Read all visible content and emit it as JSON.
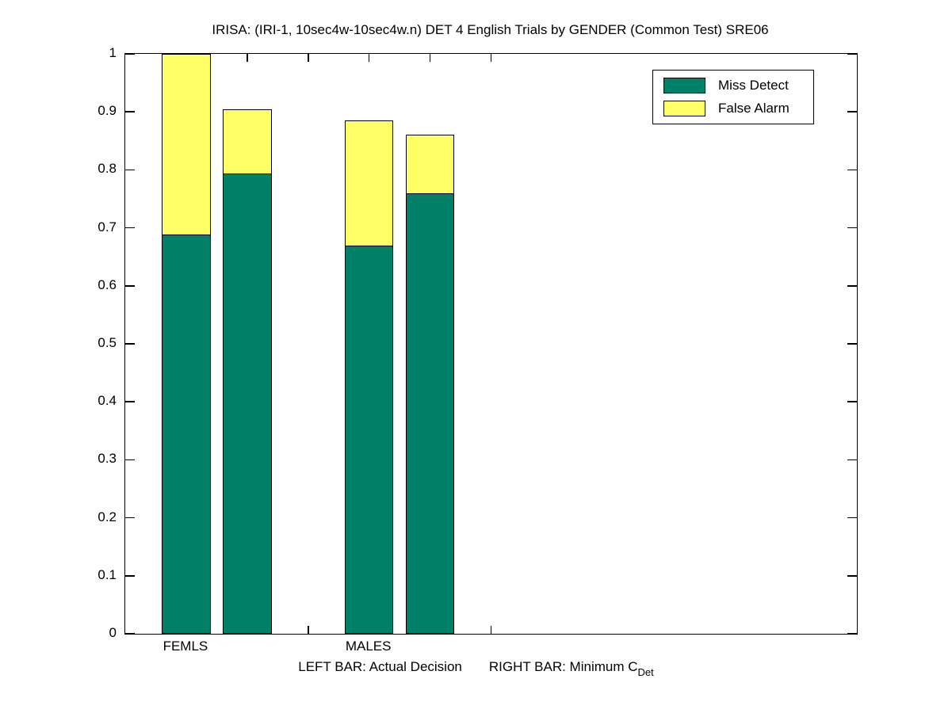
{
  "chart_data": {
    "type": "bar",
    "stacked": true,
    "title": "IRISA: (IRI-1, 10sec4w-10sec4w.n) DET 4 English Trials by GENDER (Common Test) SRE06",
    "xlabel": "LEFT BAR: Actual Decision    RIGHT BAR: Minimum C_Det",
    "xlabel_parts": {
      "left": "LEFT BAR: Actual Decision",
      "right_main": "RIGHT BAR: Minimum C",
      "right_sub": "Det"
    },
    "ylabel": "",
    "ylim": [
      0,
      1
    ],
    "xlim": [
      0.5,
      4.5
    ],
    "yticks": [
      0,
      0.1,
      0.2,
      0.3,
      0.4,
      0.5,
      0.6,
      0.7,
      0.8,
      0.9,
      1
    ],
    "ytick_labels": [
      "0",
      "0.1",
      "0.2",
      "0.3",
      "0.4",
      "0.5",
      "0.6",
      "0.7",
      "0.8",
      "0.9",
      "1"
    ],
    "xticks": [
      0.8333,
      1.1667,
      1.5,
      1.8333,
      2.1667,
      2.5
    ],
    "grid": false,
    "box": true,
    "legend": {
      "position": "top-right",
      "entries": [
        {
          "label": "Miss Detect",
          "color": "#008066"
        },
        {
          "label": "False Alarm",
          "color": "#FFFF66"
        }
      ]
    },
    "categories": [
      "FEMLS",
      "MALES"
    ],
    "category_label_x": [
      0.8333,
      1.8333
    ],
    "bar_width": 0.2667,
    "bars": [
      {
        "group": "FEMLS",
        "kind": "Actual Decision",
        "x_center": 0.8333,
        "miss_detect": 0.69,
        "false_alarm": 0.31,
        "total": 1.0
      },
      {
        "group": "FEMLS",
        "kind": "Minimum C_Det",
        "x_center": 1.1667,
        "miss_detect": 0.795,
        "false_alarm": 0.11,
        "total": 0.905
      },
      {
        "group": "MALES",
        "kind": "Actual Decision",
        "x_center": 1.8333,
        "miss_detect": 0.67,
        "false_alarm": 0.215,
        "total": 0.885
      },
      {
        "group": "MALES",
        "kind": "Minimum C_Det",
        "x_center": 2.1667,
        "miss_detect": 0.76,
        "false_alarm": 0.1,
        "total": 0.86
      }
    ],
    "colors": {
      "miss_detect": "#008066",
      "false_alarm": "#FFFF66",
      "axis": "#000000",
      "background": "#FFFFFF"
    }
  }
}
